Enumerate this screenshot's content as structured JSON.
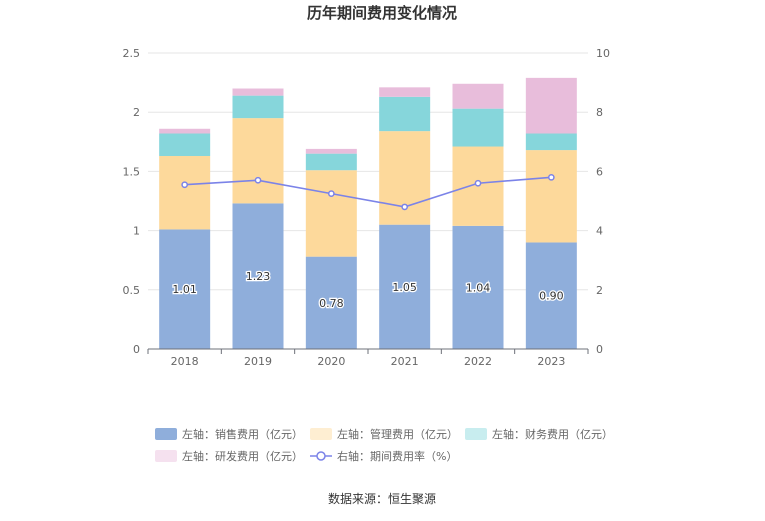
{
  "chart_data": {
    "type": "bar",
    "title": "历年期间费用变化情况",
    "source": "数据来源：恒生聚源",
    "categories": [
      "2018",
      "2019",
      "2020",
      "2021",
      "2022",
      "2023"
    ],
    "left_axis": {
      "ylim": [
        0,
        2.5
      ],
      "ticks": [
        "0",
        "0.5",
        "1",
        "1.5",
        "2",
        "2.5"
      ]
    },
    "right_axis": {
      "ylim": [
        0,
        10
      ],
      "ticks": [
        "0",
        "2",
        "4",
        "6",
        "8",
        "10"
      ]
    },
    "stacked": true,
    "grid": true,
    "legend_position": "bottom",
    "series": [
      {
        "name": "左轴：销售费用（亿元）",
        "axis": "left",
        "type": "bar",
        "color": "#8faedb",
        "values": [
          1.01,
          1.23,
          0.78,
          1.05,
          1.04,
          0.9
        ],
        "labels": [
          "1.01",
          "1.23",
          "0.78",
          "1.05",
          "1.04",
          "0.90"
        ]
      },
      {
        "name": "左轴：管理费用（亿元）",
        "axis": "left",
        "type": "bar",
        "color": "#fdd99b",
        "values": [
          0.62,
          0.72,
          0.73,
          0.79,
          0.67,
          0.78
        ]
      },
      {
        "name": "左轴：财务费用（亿元）",
        "axis": "left",
        "type": "bar",
        "color": "#86d6db",
        "values": [
          0.19,
          0.19,
          0.14,
          0.29,
          0.32,
          0.14
        ]
      },
      {
        "name": "左轴：研发费用（亿元）",
        "axis": "left",
        "type": "bar",
        "color": "#e8bddb",
        "values": [
          0.04,
          0.06,
          0.04,
          0.08,
          0.21,
          0.47
        ]
      },
      {
        "name": "右轴：期间费用率（%）",
        "axis": "right",
        "type": "line",
        "color": "#7b83e8",
        "values": [
          5.55,
          5.7,
          5.25,
          4.8,
          5.6,
          5.8
        ]
      }
    ]
  }
}
